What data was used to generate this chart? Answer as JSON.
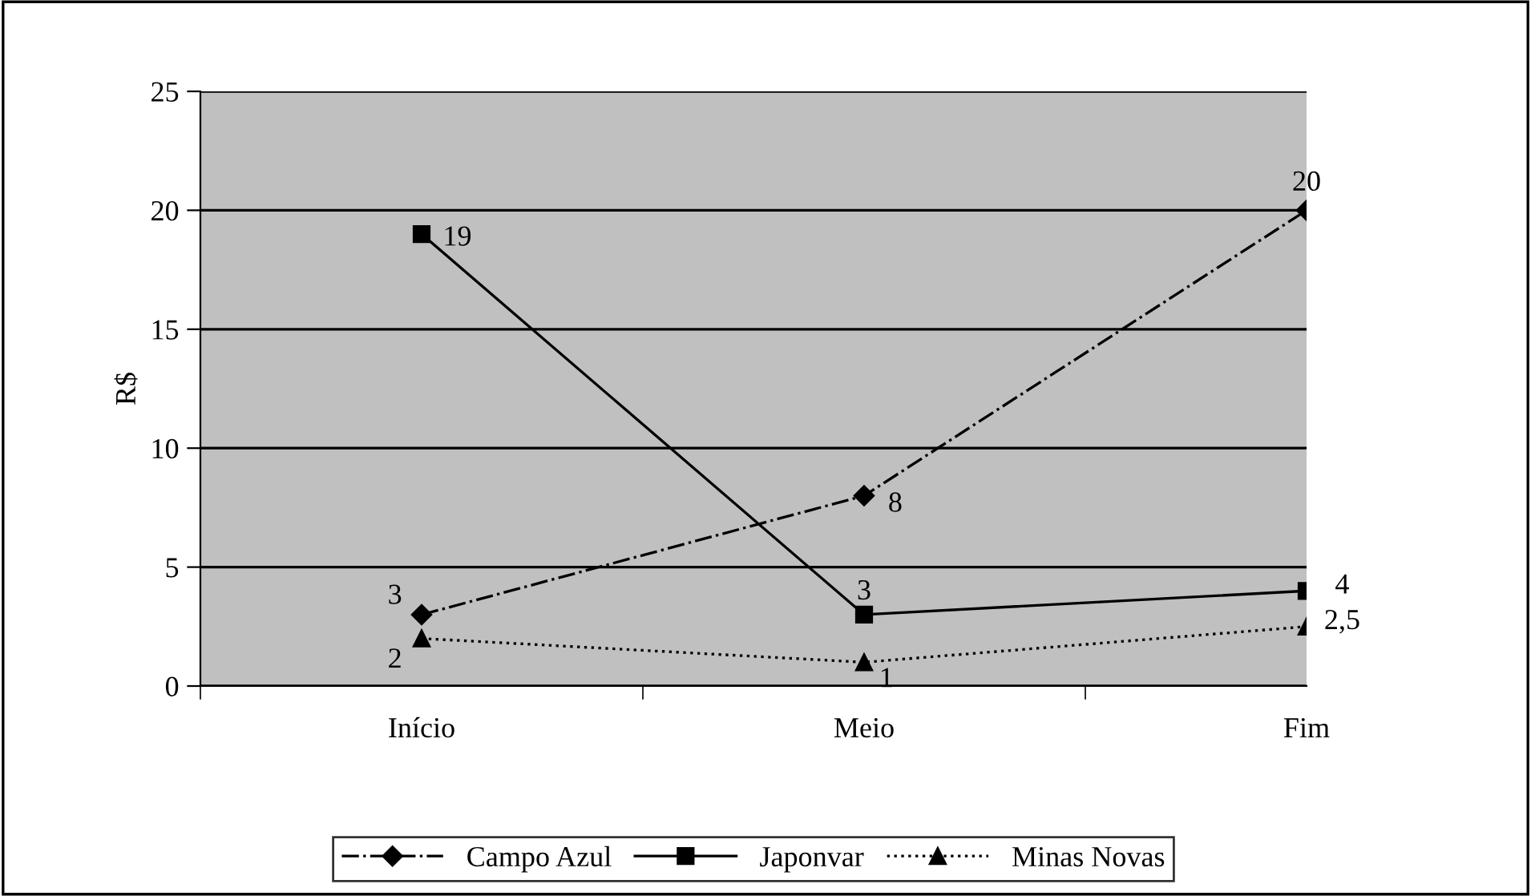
{
  "chart_data": {
    "type": "line",
    "ylabel": "R$",
    "categories": [
      "Início",
      "Meio",
      "Fim"
    ],
    "series": [
      {
        "name": "Campo Azul",
        "color": "#000000",
        "values": [
          3,
          8,
          20
        ],
        "marker": "diamond",
        "line_style": "dashdot",
        "value_labels": [
          "3",
          "8",
          "20"
        ]
      },
      {
        "name": "Japonvar",
        "color": "#000000",
        "values": [
          19,
          3,
          4
        ],
        "marker": "square",
        "line_style": "solid",
        "value_labels": [
          "19",
          "3",
          "4"
        ]
      },
      {
        "name": "Minas Novas",
        "color": "#000000",
        "values": [
          2,
          1,
          2.5
        ],
        "marker": "triangle",
        "line_style": "dotted",
        "value_labels": [
          "2",
          "1",
          "2,5"
        ]
      }
    ],
    "ylim": [
      0,
      25
    ],
    "yticks": [
      0,
      5,
      10,
      15,
      20,
      25
    ],
    "grid": "y",
    "legend": "bottom"
  }
}
